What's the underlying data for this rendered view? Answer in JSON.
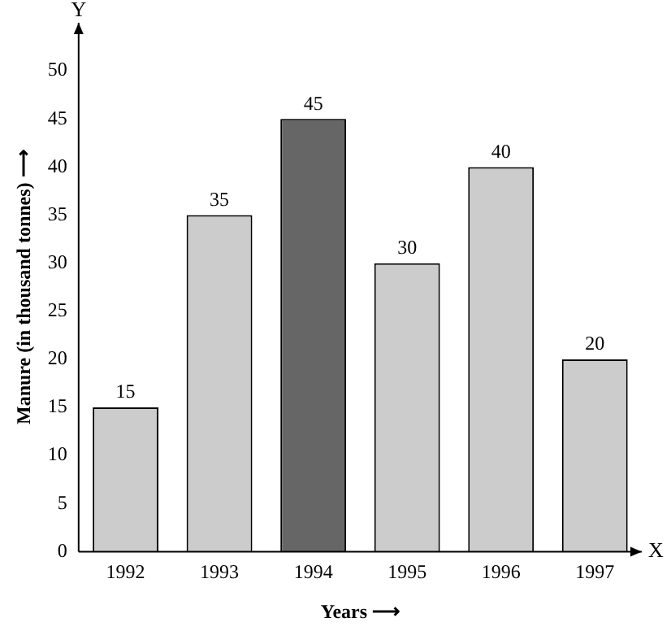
{
  "chart_data": {
    "type": "bar",
    "categories": [
      "1992",
      "1993",
      "1994",
      "1995",
      "1996",
      "1997"
    ],
    "values": [
      15,
      35,
      45,
      30,
      40,
      20
    ],
    "colors": [
      "#cccccc",
      "#cccccc",
      "#666666",
      "#cccccc",
      "#cccccc",
      "#cccccc"
    ],
    "xlabel": "Years ⟶",
    "ylabel": "Manure (in thousand tonnes) ⟶",
    "ylim": [
      0,
      55
    ],
    "yticks": [
      0,
      5,
      10,
      15,
      20,
      25,
      30,
      35,
      40,
      45,
      50
    ],
    "annotations": [
      "Y",
      "X"
    ],
    "data_labels": true,
    "grid": false,
    "legend": false
  }
}
